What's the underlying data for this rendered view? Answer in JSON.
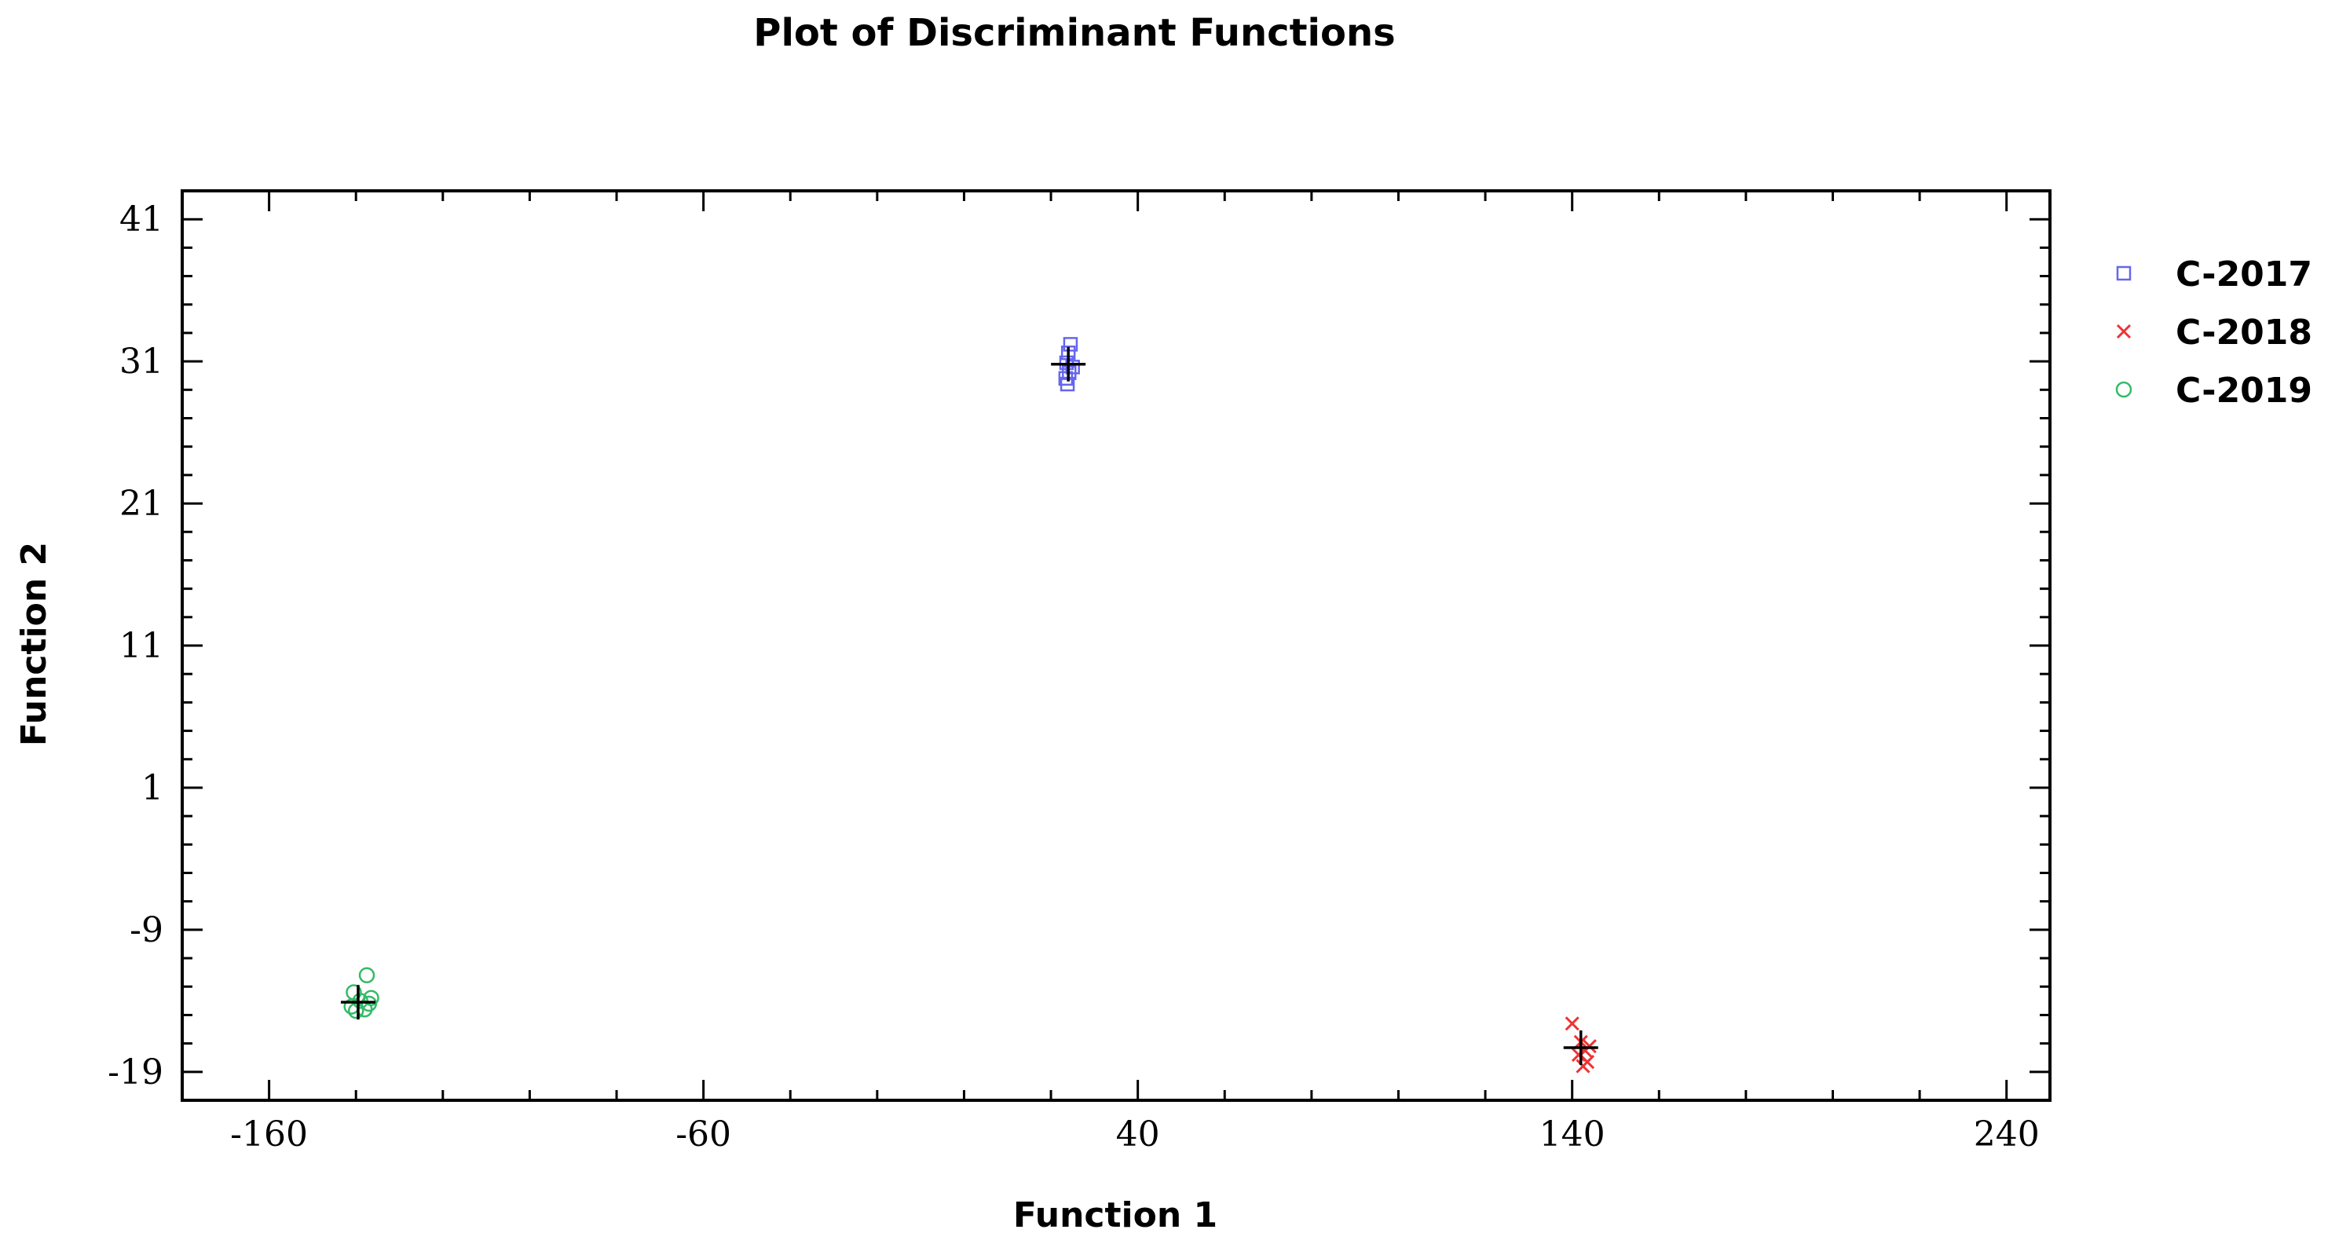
{
  "chart_data": {
    "type": "scatter",
    "title": "Plot of Discriminant Functions",
    "xlabel": "Function 1",
    "ylabel": "Function 2",
    "xlim": [
      -180,
      250
    ],
    "ylim": [
      -21,
      43
    ],
    "xticks": [
      -160,
      -60,
      40,
      140,
      240
    ],
    "yticks": [
      41,
      31,
      21,
      11,
      1,
      -9,
      -19
    ],
    "grid": false,
    "legend_position": "right-top",
    "series": [
      {
        "name": "C-2017",
        "marker": "square",
        "color": "#6666ee",
        "points": [
          [
            24.5,
            32.2
          ],
          [
            24.0,
            31.6
          ],
          [
            23.6,
            30.9
          ],
          [
            25.0,
            30.6
          ],
          [
            24.2,
            30.2
          ],
          [
            23.4,
            29.8
          ],
          [
            23.8,
            29.4
          ]
        ]
      },
      {
        "name": "C-2018",
        "marker": "x",
        "color": "#ee3333",
        "points": [
          [
            140.0,
            -15.6
          ],
          [
            142.0,
            -16.9
          ],
          [
            143.0,
            -17.5
          ],
          [
            141.5,
            -17.8
          ],
          [
            143.5,
            -18.3
          ],
          [
            142.5,
            -18.6
          ],
          [
            144.0,
            -17.2
          ]
        ]
      },
      {
        "name": "C-2019",
        "marker": "circle",
        "color": "#33bb66",
        "points": [
          [
            -137.5,
            -12.2
          ],
          [
            -140.5,
            -13.4
          ],
          [
            -139.0,
            -14.0
          ],
          [
            -137.0,
            -14.2
          ],
          [
            -141.0,
            -14.4
          ],
          [
            -138.0,
            -14.6
          ],
          [
            -140.0,
            -14.7
          ],
          [
            -136.5,
            -13.8
          ]
        ]
      }
    ],
    "centroids": [
      {
        "x": 24.0,
        "y": 30.8
      },
      {
        "x": 142.0,
        "y": -17.3
      },
      {
        "x": -139.5,
        "y": -14.1
      }
    ]
  }
}
